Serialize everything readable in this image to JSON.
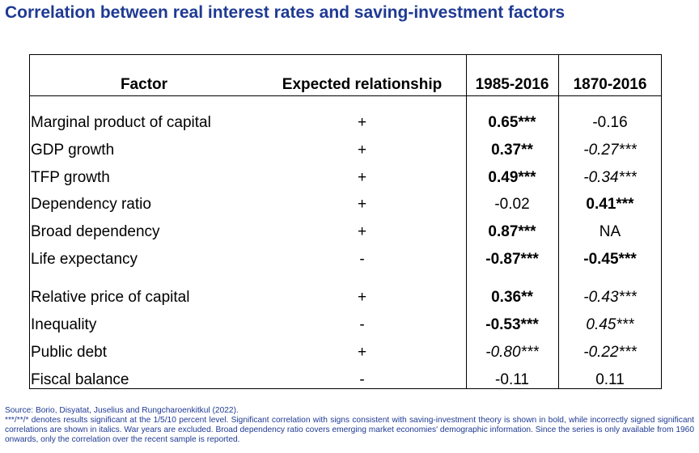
{
  "title": "Correlation between real interest rates and saving-investment factors",
  "table": {
    "headers": {
      "factor": "Factor",
      "expected": "Expected relationship",
      "p1": "1985-2016",
      "p2": "1870-2016"
    },
    "rows": [
      {
        "factor": "Marginal product of capital",
        "expected": "+",
        "p1": "0.65***",
        "p1_style": "bold",
        "p2": "-0.16",
        "p2_style": "normal"
      },
      {
        "factor": "GDP growth",
        "expected": "+",
        "p1": "0.37**",
        "p1_style": "bold",
        "p2": "-0.27***",
        "p2_style": "italic"
      },
      {
        "factor": "TFP growth",
        "expected": "+",
        "p1": "0.49***",
        "p1_style": "bold",
        "p2": "-0.34***",
        "p2_style": "italic"
      },
      {
        "factor": "Dependency ratio",
        "expected": "+",
        "p1": "-0.02",
        "p1_style": "normal",
        "p2": "0.41***",
        "p2_style": "bold"
      },
      {
        "factor": "Broad dependency",
        "expected": "+",
        "p1": "0.87***",
        "p1_style": "bold",
        "p2": "NA",
        "p2_style": "normal"
      },
      {
        "factor": "Life expectancy",
        "expected": "-",
        "p1": "-0.87***",
        "p1_style": "bold",
        "p2": "-0.45***",
        "p2_style": "bold"
      },
      {
        "factor": "Relative price of capital",
        "expected": "+",
        "p1": "0.36**",
        "p1_style": "bold",
        "p2": "-0.43***",
        "p2_style": "italic"
      },
      {
        "factor": "Inequality",
        "expected": "-",
        "p1": "-0.53***",
        "p1_style": "bold",
        "p2": "0.45***",
        "p2_style": "italic"
      },
      {
        "factor": "Public debt",
        "expected": "+",
        "p1": "-0.80***",
        "p1_style": "italic",
        "p2": "-0.22***",
        "p2_style": "italic"
      },
      {
        "factor": "Fiscal balance",
        "expected": "-",
        "p1": "-0.11",
        "p1_style": "normal",
        "p2": "0.11",
        "p2_style": "normal"
      }
    ]
  },
  "footer": {
    "source": "Source: Borio, Disyatat, Juselius and Rungcharoenkitkul (2022).",
    "note": "***/**/* denotes results significant at the 1/5/10 percent level. Significant correlation with signs consistent with saving-investment theory is shown in bold, while incorrectly signed significant correlations are shown in italics. War years are excluded. Broad dependency ratio covers emerging market economies' demographic information. Since the series is only available from 1960 onwards, only the correlation over the recent sample is reported."
  }
}
